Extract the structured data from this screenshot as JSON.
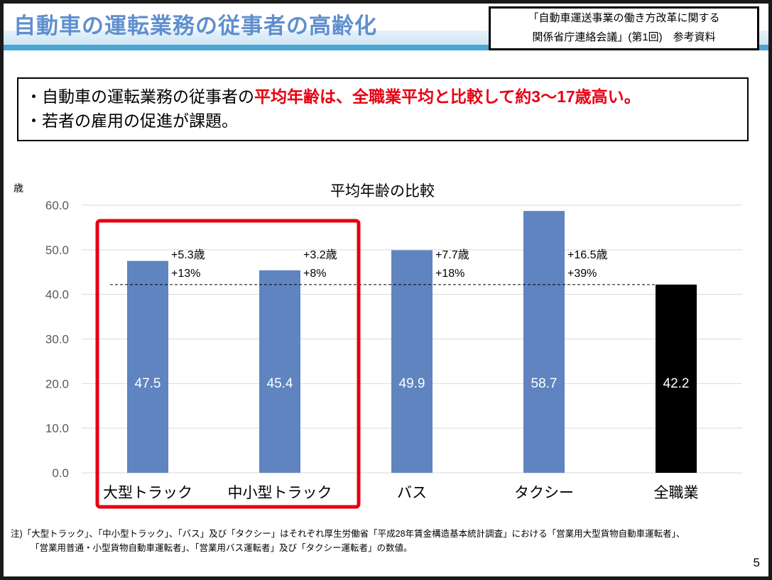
{
  "header": {
    "title": "自動車の運転業務の従事者の高齢化",
    "reference_line1": "「自動車運送事業の働き方改革に関する",
    "reference_line2": "関係省庁連絡会議」(第1回)　参考資料"
  },
  "summary": {
    "line1_prefix": "・自動車の運転業務の従事者の",
    "line1_highlight": "平均年齢は、全職業平均と比較して約3～17歳高い",
    "line1_suffix": "。",
    "line2": "・若者の雇用の促進が課題。"
  },
  "chart_data": {
    "type": "bar",
    "title": "平均年齢の比較",
    "ylabel": "歳",
    "ylim": [
      0,
      60
    ],
    "yticks": [
      "0.0",
      "10.0",
      "20.0",
      "30.0",
      "40.0",
      "50.0",
      "60.0"
    ],
    "grid": true,
    "categories": [
      "大型トラック",
      "中小型トラック",
      "バス",
      "タクシー",
      "全職業"
    ],
    "values": [
      47.5,
      45.4,
      49.9,
      58.7,
      42.2
    ],
    "value_labels": [
      "47.5",
      "45.4",
      "49.9",
      "58.7",
      "42.2"
    ],
    "diff_years": [
      "+5.3歳",
      "+3.2歳",
      "+7.7歳",
      "+16.5歳",
      ""
    ],
    "diff_percent": [
      "+13%",
      "+8%",
      "+18%",
      "+39%",
      ""
    ],
    "reference_line": 42.2,
    "highlight_categories": [
      "大型トラック",
      "中小型トラック"
    ],
    "colors": {
      "bar": "#5f84bf",
      "reference_bar": "#000000",
      "highlight_box": "#e60012"
    }
  },
  "footnote": {
    "line1": "注)「大型トラック」、「中小型トラック」、「バス」及び「タクシー」はそれぞれ厚生労働省「平成28年賃金構造基本統計調査」における「営業用大型貨物自動車運転者」、",
    "line2": "「営業用普通・小型貨物自動車運転者」、「営業用バス運転者」及び「タクシー運転者」の数値。"
  },
  "page_number": "5"
}
